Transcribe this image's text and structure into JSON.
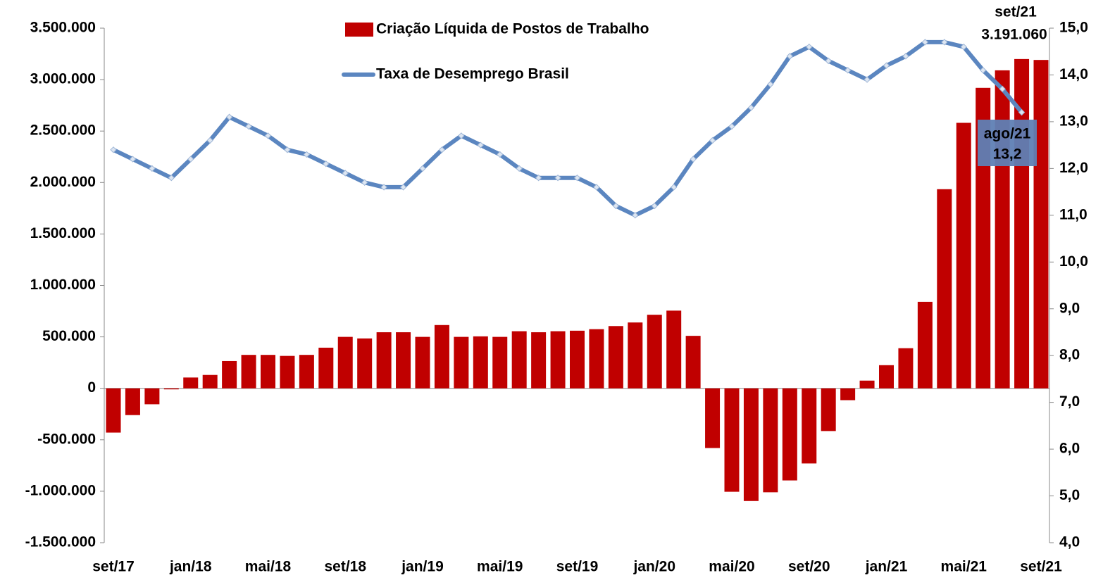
{
  "chart_data": {
    "type": "bar_line",
    "categories": [
      "set/17",
      null,
      null,
      null,
      "jan/18",
      null,
      null,
      null,
      "mai/18",
      null,
      null,
      null,
      "set/18",
      null,
      null,
      null,
      "jan/19",
      null,
      null,
      null,
      "mai/19",
      null,
      null,
      null,
      "set/19",
      null,
      null,
      null,
      "jan/20",
      null,
      null,
      null,
      "mai/20",
      null,
      null,
      null,
      "set/20",
      null,
      null,
      null,
      "jan/21",
      null,
      null,
      null,
      "mai/21",
      null,
      null,
      null,
      "set/21"
    ],
    "series": [
      {
        "name": "Criação Líquida de Postos de Trabalho",
        "type": "bar",
        "color": "#c00000",
        "values": [
          -430000,
          -260000,
          -155000,
          -10000,
          105000,
          130000,
          265000,
          325000,
          325000,
          315000,
          325000,
          395000,
          500000,
          485000,
          545000,
          545000,
          500000,
          615000,
          500000,
          505000,
          500000,
          555000,
          545000,
          555000,
          560000,
          575000,
          605000,
          640000,
          715000,
          755000,
          510000,
          -580000,
          -1005000,
          -1095000,
          -1010000,
          -895000,
          -730000,
          -415000,
          -115000,
          75000,
          225000,
          390000,
          840000,
          1935000,
          2580000,
          2920000,
          3090000,
          3200000,
          3191060
        ]
      },
      {
        "name": "Taxa de Desemprego Brasil",
        "type": "line",
        "axis": "y2",
        "color": "#5b86c0",
        "values": [
          12.4,
          12.2,
          12.0,
          11.8,
          12.2,
          12.6,
          13.1,
          12.9,
          12.7,
          12.4,
          12.3,
          12.1,
          11.9,
          11.7,
          11.6,
          11.6,
          12.0,
          12.4,
          12.7,
          12.5,
          12.3,
          12.0,
          11.8,
          11.8,
          11.8,
          11.6,
          11.2,
          11.0,
          11.2,
          11.6,
          12.2,
          12.6,
          12.9,
          13.3,
          13.8,
          14.4,
          14.6,
          14.3,
          14.1,
          13.9,
          14.2,
          14.4,
          14.7,
          14.7,
          14.6,
          14.1,
          13.7,
          13.2,
          null
        ]
      }
    ],
    "ylim": [
      -1500000,
      3500000
    ],
    "yticks": [
      {
        "value": -1500000,
        "label": "-1.500.000"
      },
      {
        "value": -1000000,
        "label": "-1.000.000"
      },
      {
        "value": -500000,
        "label": "-500.000"
      },
      0,
      {
        "value": 500000,
        "label": "500.000"
      },
      {
        "value": 1000000,
        "label": "1.000.000"
      },
      {
        "value": 1500000,
        "label": "1.500.000"
      },
      {
        "value": 2000000,
        "label": "2.000.000"
      },
      {
        "value": 2500000,
        "label": "2.500.000"
      },
      {
        "value": 3000000,
        "label": "3.000.000"
      },
      {
        "value": 3500000,
        "label": "3.500.000"
      }
    ],
    "y2lim": [
      4,
      15
    ],
    "y2ticks": [
      {
        "value": 4,
        "label": "4,0"
      },
      {
        "value": 5,
        "label": "5,0"
      },
      {
        "value": 6,
        "label": "6,0"
      },
      {
        "value": 7,
        "label": "7,0"
      },
      {
        "value": 8,
        "label": "8,0"
      },
      {
        "value": 9,
        "label": "9,0"
      },
      {
        "value": 10,
        "label": "10,0"
      },
      {
        "value": 11,
        "label": "11,0"
      },
      {
        "value": 12,
        "label": "12,0"
      },
      {
        "value": 13,
        "label": "13,0"
      },
      {
        "value": 14,
        "label": "14,0"
      },
      {
        "value": 15,
        "label": "15,0"
      }
    ],
    "annotations": [
      "set/21",
      "3.191.060",
      "ago/21",
      "13,2"
    ],
    "grid": false
  }
}
